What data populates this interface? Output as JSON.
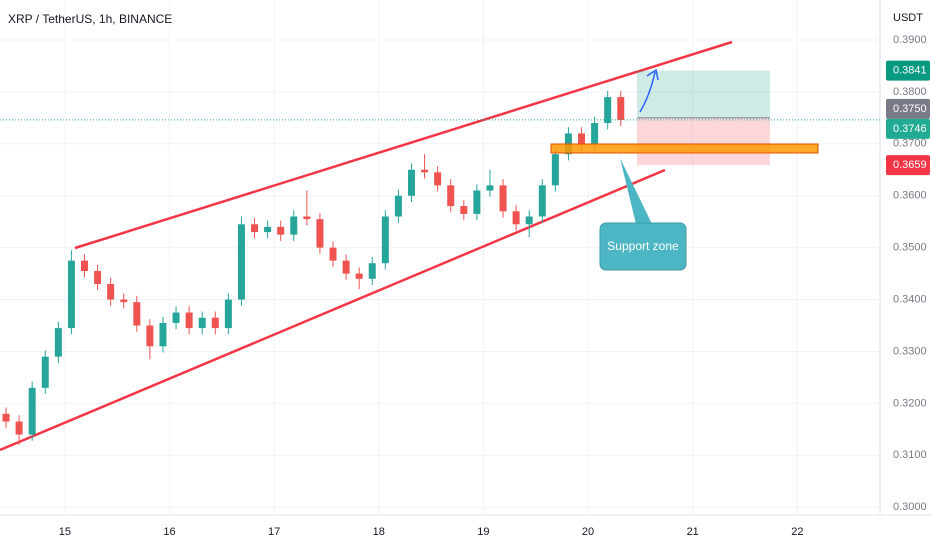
{
  "chart_data": {
    "type": "candlestick",
    "title": "XRP / TetherUS, 1h, BINANCE",
    "currency": "USDT",
    "annotation": "Support zone",
    "x": [
      14.4375,
      14.5625,
      14.6875,
      14.8125,
      14.9375,
      15.0625,
      15.1875,
      15.3125,
      15.4375,
      15.5625,
      15.6875,
      15.8125,
      15.9375,
      16.0625,
      16.1875,
      16.3125,
      16.4375,
      16.5625,
      16.6875,
      16.8125,
      16.9375,
      17.0625,
      17.1875,
      17.3125,
      17.4375,
      17.5625,
      17.6875,
      17.8125,
      17.9375,
      18.0625,
      18.1875,
      18.3125,
      18.4375,
      18.5625,
      18.6875,
      18.8125,
      18.9375,
      19.0625,
      19.1875,
      19.3125,
      19.4375,
      19.5625,
      19.6875,
      19.8125,
      19.9375,
      20.0625,
      20.1875,
      20.3125
    ],
    "open": [
      0.318,
      0.3165,
      0.314,
      0.323,
      0.329,
      0.3345,
      0.3475,
      0.3455,
      0.343,
      0.34,
      0.3395,
      0.335,
      0.331,
      0.3355,
      0.3375,
      0.3345,
      0.3365,
      0.3345,
      0.34,
      0.3545,
      0.353,
      0.354,
      0.3525,
      0.356,
      0.3555,
      0.35,
      0.3475,
      0.345,
      0.344,
      0.347,
      0.356,
      0.36,
      0.365,
      0.3645,
      0.362,
      0.358,
      0.3565,
      0.361,
      0.362,
      0.357,
      0.3545,
      0.356,
      0.362,
      0.368,
      0.372,
      0.37,
      0.374,
      0.379
    ],
    "high": [
      0.3192,
      0.3177,
      0.3242,
      0.3302,
      0.3357,
      0.3495,
      0.3487,
      0.3467,
      0.3442,
      0.3412,
      0.3407,
      0.3362,
      0.3367,
      0.3387,
      0.3387,
      0.3377,
      0.3377,
      0.3412,
      0.356,
      0.3557,
      0.3552,
      0.3552,
      0.3572,
      0.361,
      0.3567,
      0.3512,
      0.3487,
      0.3462,
      0.3482,
      0.3572,
      0.3612,
      0.3662,
      0.368,
      0.3657,
      0.3632,
      0.3592,
      0.3622,
      0.365,
      0.3632,
      0.3582,
      0.3572,
      0.3632,
      0.3692,
      0.3732,
      0.3732,
      0.3752,
      0.3802,
      0.3802
    ],
    "low": [
      0.3153,
      0.312,
      0.3128,
      0.3218,
      0.3278,
      0.3333,
      0.3443,
      0.3418,
      0.3388,
      0.3383,
      0.3338,
      0.3285,
      0.3298,
      0.3343,
      0.3333,
      0.3333,
      0.3333,
      0.3333,
      0.3388,
      0.3518,
      0.3518,
      0.3513,
      0.3513,
      0.3543,
      0.3488,
      0.3463,
      0.3438,
      0.342,
      0.3428,
      0.3458,
      0.3548,
      0.3588,
      0.3633,
      0.3608,
      0.3568,
      0.3553,
      0.3553,
      0.3598,
      0.3558,
      0.3533,
      0.352,
      0.3548,
      0.3608,
      0.3668,
      0.3688,
      0.3688,
      0.3728,
      0.3734
    ],
    "close": [
      0.3165,
      0.314,
      0.323,
      0.329,
      0.3345,
      0.3475,
      0.3455,
      0.343,
      0.34,
      0.3395,
      0.335,
      0.331,
      0.3355,
      0.3375,
      0.3345,
      0.3365,
      0.3345,
      0.34,
      0.3545,
      0.353,
      0.354,
      0.3525,
      0.356,
      0.3555,
      0.35,
      0.3475,
      0.345,
      0.344,
      0.347,
      0.356,
      0.36,
      0.365,
      0.3645,
      0.362,
      0.358,
      0.3565,
      0.361,
      0.362,
      0.357,
      0.3545,
      0.356,
      0.362,
      0.368,
      0.372,
      0.37,
      0.374,
      0.379,
      0.3746
    ],
    "up_color": "#26a69a",
    "down_color": "#ef5350",
    "xlim": [
      14.38,
      22.79
    ],
    "xticks": [
      15,
      16,
      17,
      18,
      19,
      20,
      21,
      22
    ],
    "ylim": [
      0.2985,
      0.3977
    ],
    "yticks": [
      {
        "value": 0.3,
        "label": "0.3000"
      },
      {
        "value": 0.31,
        "label": "0.3100"
      },
      {
        "value": 0.32,
        "label": "0.3200"
      },
      {
        "value": 0.33,
        "label": "0.3300"
      },
      {
        "value": 0.34,
        "label": "0.3400"
      },
      {
        "value": 0.35,
        "label": "0.3500"
      },
      {
        "value": 0.36,
        "label": "0.3600"
      },
      {
        "value": 0.37,
        "label": "0.3700"
      },
      {
        "value": 0.38,
        "label": "0.3800"
      },
      {
        "value": 0.39,
        "label": "0.3900"
      }
    ],
    "grid": true,
    "price_labels": [
      {
        "value": 0.3841,
        "label": "0.3841",
        "color": "#089981"
      },
      {
        "value": 0.375,
        "label": "0.3750",
        "color": "#787b86"
      },
      {
        "value": 0.3746,
        "label": "0.3746",
        "color": "#22ab94"
      },
      {
        "value": 0.3659,
        "label": "0.3659",
        "color": "#f23645"
      }
    ]
  }
}
